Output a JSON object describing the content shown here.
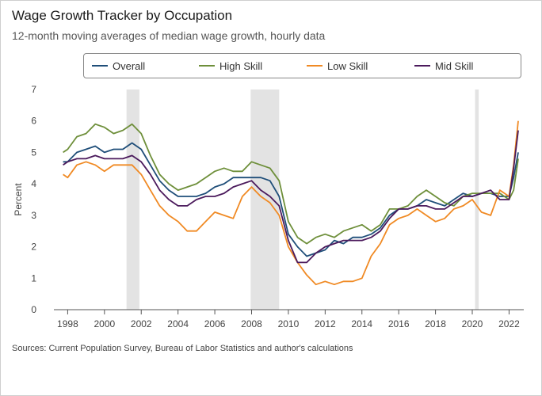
{
  "title": "Wage Growth Tracker by Occupation",
  "subtitle": "12-month moving averages of median wage growth, hourly data",
  "source": "Sources: Current Population Survey, Bureau of Labor Statistics and author's calculations",
  "legend": [
    {
      "name": "Overall",
      "color": "#1f4e79"
    },
    {
      "name": "High Skill",
      "color": "#6e8f3a"
    },
    {
      "name": "Low Skill",
      "color": "#f08a24"
    },
    {
      "name": "Mid Skill",
      "color": "#4b1a5c"
    }
  ],
  "chart_data": {
    "type": "line",
    "title": "Wage Growth Tracker by Occupation",
    "subtitle": "12-month moving averages of median wage growth, hourly data",
    "xlabel": "",
    "ylabel": "Percent",
    "xlim": [
      1997.25,
      2022.8
    ],
    "ylim": [
      0,
      7
    ],
    "xticks": [
      1998,
      2000,
      2002,
      2004,
      2006,
      2008,
      2010,
      2012,
      2014,
      2016,
      2018,
      2020,
      2022
    ],
    "yticks": [
      0,
      1,
      2,
      3,
      4,
      5,
      6,
      7
    ],
    "recessions": [
      [
        2001.2,
        2001.9
      ],
      [
        2007.95,
        2009.5
      ],
      [
        2020.15,
        2020.35
      ]
    ],
    "x": [
      1997.75,
      1998.0,
      1998.5,
      1999.0,
      1999.5,
      2000.0,
      2000.5,
      2001.0,
      2001.5,
      2002.0,
      2002.5,
      2003.0,
      2003.5,
      2004.0,
      2004.5,
      2005.0,
      2005.5,
      2006.0,
      2006.5,
      2007.0,
      2007.5,
      2008.0,
      2008.5,
      2009.0,
      2009.5,
      2010.0,
      2010.5,
      2011.0,
      2011.5,
      2012.0,
      2012.5,
      2013.0,
      2013.5,
      2014.0,
      2014.5,
      2015.0,
      2015.5,
      2016.0,
      2016.5,
      2017.0,
      2017.5,
      2018.0,
      2018.5,
      2019.0,
      2019.5,
      2020.0,
      2020.5,
      2021.0,
      2021.5,
      2022.0,
      2022.25,
      2022.5
    ],
    "series": [
      {
        "name": "Overall",
        "color": "#1f4e79",
        "values": [
          4.7,
          4.7,
          5.0,
          5.1,
          5.2,
          5.0,
          5.1,
          5.1,
          5.3,
          5.1,
          4.6,
          4.1,
          3.8,
          3.6,
          3.6,
          3.6,
          3.7,
          3.9,
          4.0,
          4.2,
          4.2,
          4.2,
          4.2,
          4.1,
          3.6,
          2.4,
          2.0,
          1.7,
          1.8,
          1.9,
          2.2,
          2.1,
          2.3,
          2.3,
          2.4,
          2.6,
          3.0,
          3.2,
          3.2,
          3.3,
          3.5,
          3.4,
          3.3,
          3.5,
          3.7,
          3.6,
          3.7,
          3.7,
          3.6,
          3.6,
          4.2,
          5.0
        ]
      },
      {
        "name": "High Skill",
        "color": "#6e8f3a",
        "values": [
          5.0,
          5.1,
          5.5,
          5.6,
          5.9,
          5.8,
          5.6,
          5.7,
          5.9,
          5.6,
          4.9,
          4.3,
          4.0,
          3.8,
          3.9,
          4.0,
          4.2,
          4.4,
          4.5,
          4.4,
          4.4,
          4.7,
          4.6,
          4.5,
          4.1,
          2.8,
          2.3,
          2.1,
          2.3,
          2.4,
          2.3,
          2.5,
          2.6,
          2.7,
          2.5,
          2.7,
          3.2,
          3.2,
          3.3,
          3.6,
          3.8,
          3.6,
          3.4,
          3.3,
          3.6,
          3.7,
          3.7,
          3.7,
          3.7,
          3.5,
          3.8,
          4.8
        ]
      },
      {
        "name": "Low Skill",
        "color": "#f08a24",
        "values": [
          4.3,
          4.2,
          4.6,
          4.7,
          4.6,
          4.4,
          4.6,
          4.6,
          4.6,
          4.3,
          3.8,
          3.3,
          3.0,
          2.8,
          2.5,
          2.5,
          2.8,
          3.1,
          3.0,
          2.9,
          3.6,
          3.9,
          3.6,
          3.4,
          3.0,
          2.0,
          1.5,
          1.1,
          0.8,
          0.9,
          0.8,
          0.9,
          0.9,
          1.0,
          1.7,
          2.1,
          2.7,
          2.9,
          3.0,
          3.2,
          3.0,
          2.8,
          2.9,
          3.2,
          3.3,
          3.5,
          3.1,
          3.0,
          3.8,
          3.6,
          4.6,
          6.0
        ]
      },
      {
        "name": "Mid Skill",
        "color": "#4b1a5c",
        "values": [
          4.6,
          4.7,
          4.8,
          4.8,
          4.9,
          4.8,
          4.8,
          4.8,
          4.9,
          4.7,
          4.3,
          3.8,
          3.5,
          3.3,
          3.3,
          3.5,
          3.6,
          3.6,
          3.7,
          3.9,
          4.0,
          4.1,
          3.8,
          3.6,
          3.3,
          2.2,
          1.5,
          1.5,
          1.8,
          2.0,
          2.1,
          2.2,
          2.2,
          2.2,
          2.3,
          2.5,
          2.9,
          3.2,
          3.2,
          3.3,
          3.3,
          3.2,
          3.2,
          3.4,
          3.6,
          3.6,
          3.7,
          3.8,
          3.5,
          3.5,
          4.5,
          5.7
        ]
      }
    ]
  }
}
